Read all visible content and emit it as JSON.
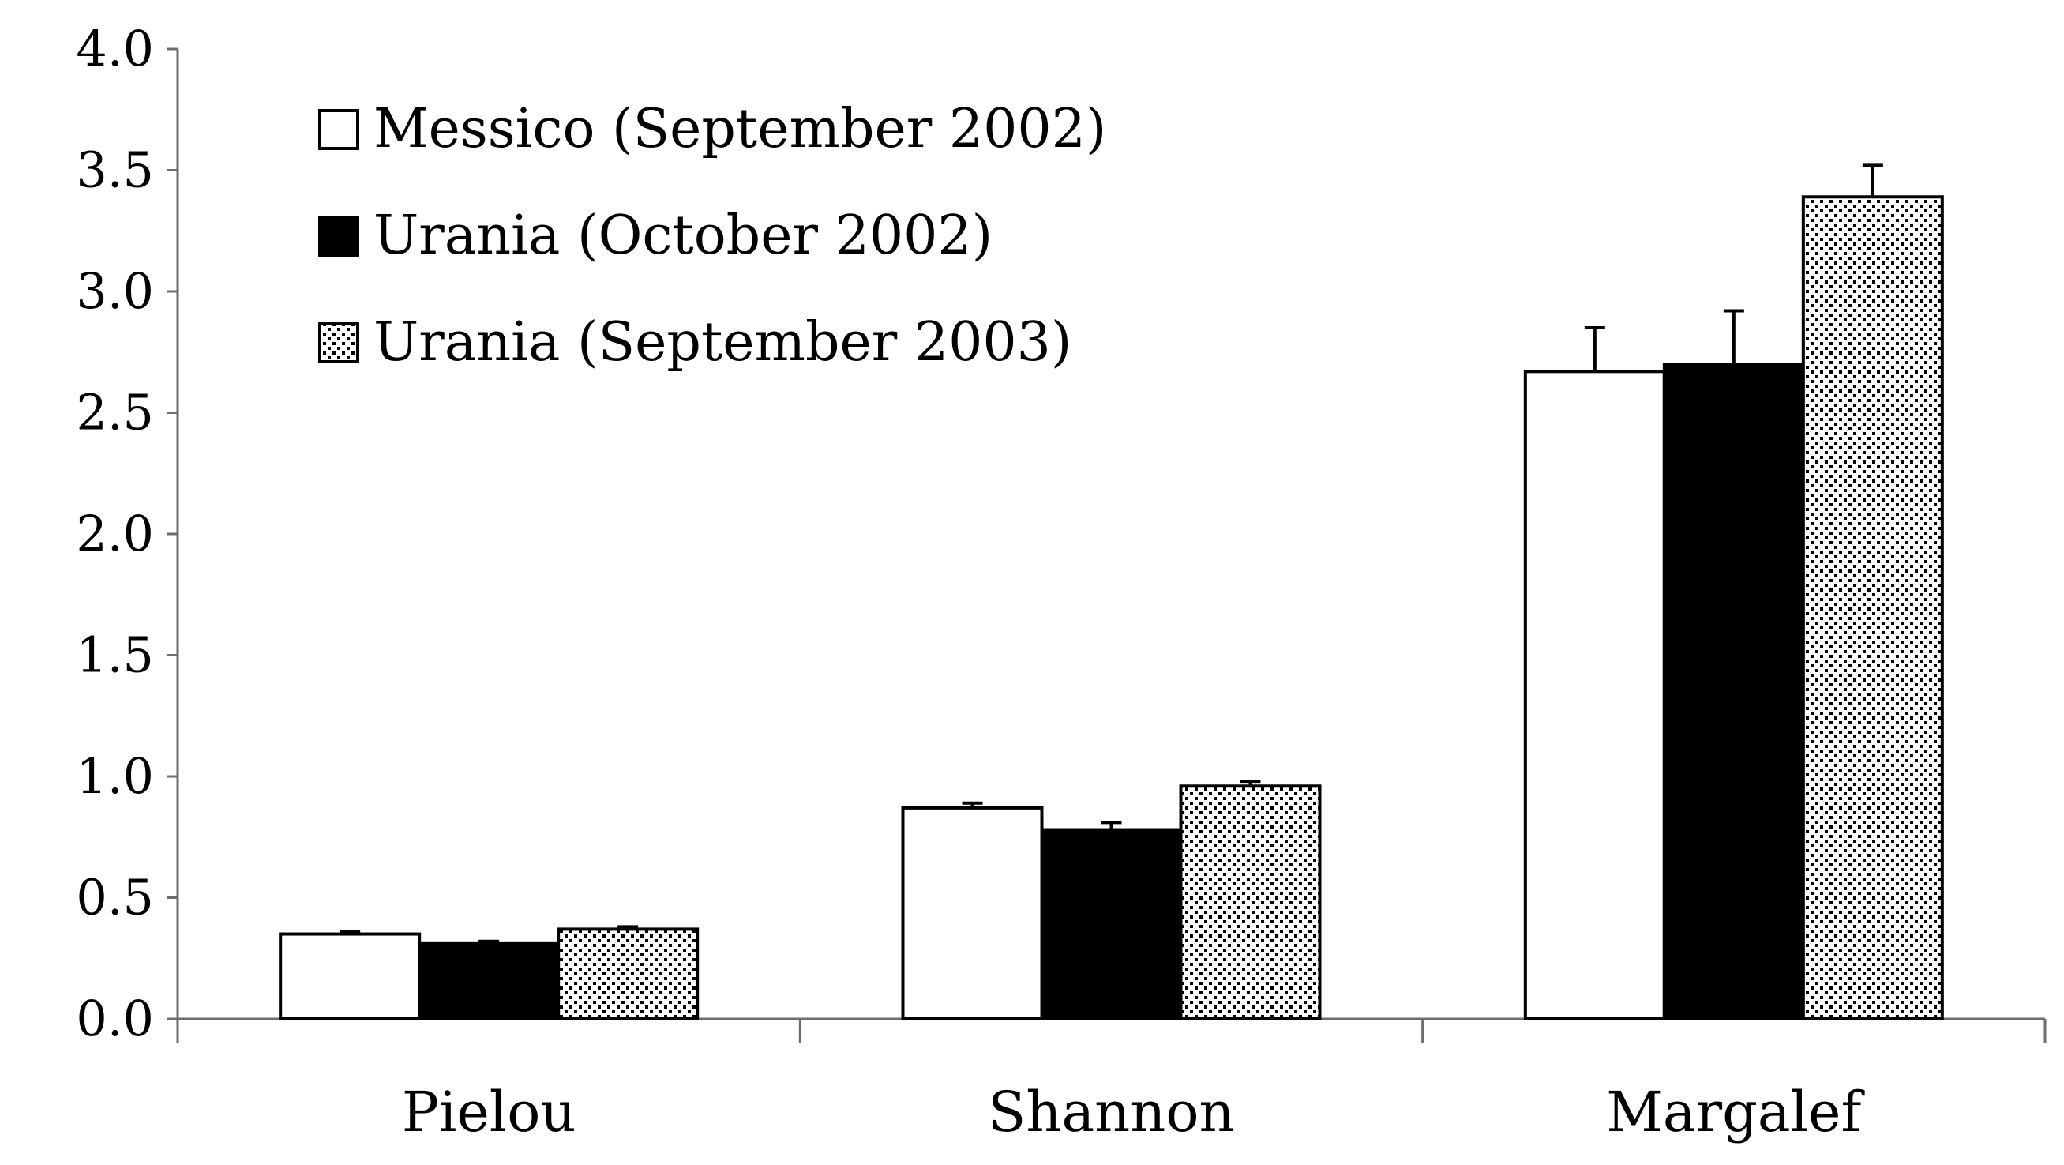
{
  "chart_data": {
    "type": "bar",
    "title": "",
    "xlabel": "",
    "ylabel": "",
    "categories": [
      "Pielou",
      "Shannon",
      "Margalef"
    ],
    "ylim": [
      0,
      4
    ],
    "yticks": [
      "0.0",
      "0.5",
      "1.0",
      "1.5",
      "2.0",
      "2.5",
      "3.0",
      "3.5",
      "4.0"
    ],
    "legend_position": "top-left",
    "grid": false,
    "series": [
      {
        "name": "Messico (September 2002)",
        "values": [
          0.35,
          0.87,
          2.67
        ],
        "errors": [
          0.01,
          0.02,
          0.18
        ],
        "fill": "#ffffff",
        "pattern": "none"
      },
      {
        "name": "Urania (October 2002)",
        "values": [
          0.31,
          0.78,
          2.7
        ],
        "errors": [
          0.01,
          0.03,
          0.22
        ],
        "fill": "#000000",
        "pattern": "none"
      },
      {
        "name": "Urania (September 2003)",
        "values": [
          0.37,
          0.96,
          3.39
        ],
        "errors": [
          0.01,
          0.02,
          0.13
        ],
        "fill": "#ffffff",
        "pattern": "dots"
      }
    ]
  }
}
